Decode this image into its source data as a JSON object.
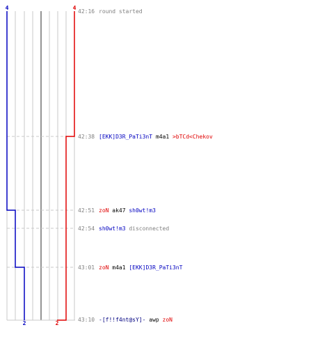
{
  "teams": {
    "blue": {
      "color": "#0000c0",
      "start_count": "4",
      "end_count": "2"
    },
    "red": {
      "color": "#e00000",
      "start_count": "4",
      "end_count": "2"
    }
  },
  "colors": {
    "time": "#808080",
    "info": "#808080",
    "player_default": "#000080",
    "weapon": "#000000"
  },
  "events": [
    {
      "time": "42:16",
      "parts": [
        {
          "text": "round started",
          "role": "info"
        }
      ]
    },
    {
      "time": "42:38",
      "parts": [
        {
          "text": "[EKK]D3R_PaTi3nT",
          "role": "blue"
        },
        {
          "text": " m4a1 ",
          "role": "weapon"
        },
        {
          "text": ">bTCd<Chekov",
          "role": "red"
        }
      ]
    },
    {
      "time": "42:51",
      "parts": [
        {
          "text": "zoN",
          "role": "red"
        },
        {
          "text": " ak47 ",
          "role": "weapon"
        },
        {
          "text": "sh0wt!m3",
          "role": "blue"
        }
      ]
    },
    {
      "time": "42:54",
      "parts": [
        {
          "text": "sh0wt!m3",
          "role": "blue"
        },
        {
          "text": " disconnected",
          "role": "info"
        }
      ]
    },
    {
      "time": "43:01",
      "parts": [
        {
          "text": "zoN",
          "role": "red"
        },
        {
          "text": " m4a1 ",
          "role": "weapon"
        },
        {
          "text": "[EKK]D3R_PaTi3nT",
          "role": "blue"
        }
      ]
    },
    {
      "time": "43:10",
      "parts": [
        {
          "text": "-[f!!f4nt@sY]-",
          "role": "player_default"
        },
        {
          "text": " awp ",
          "role": "weapon"
        },
        {
          "text": "zoN",
          "role": "red"
        }
      ]
    }
  ]
}
